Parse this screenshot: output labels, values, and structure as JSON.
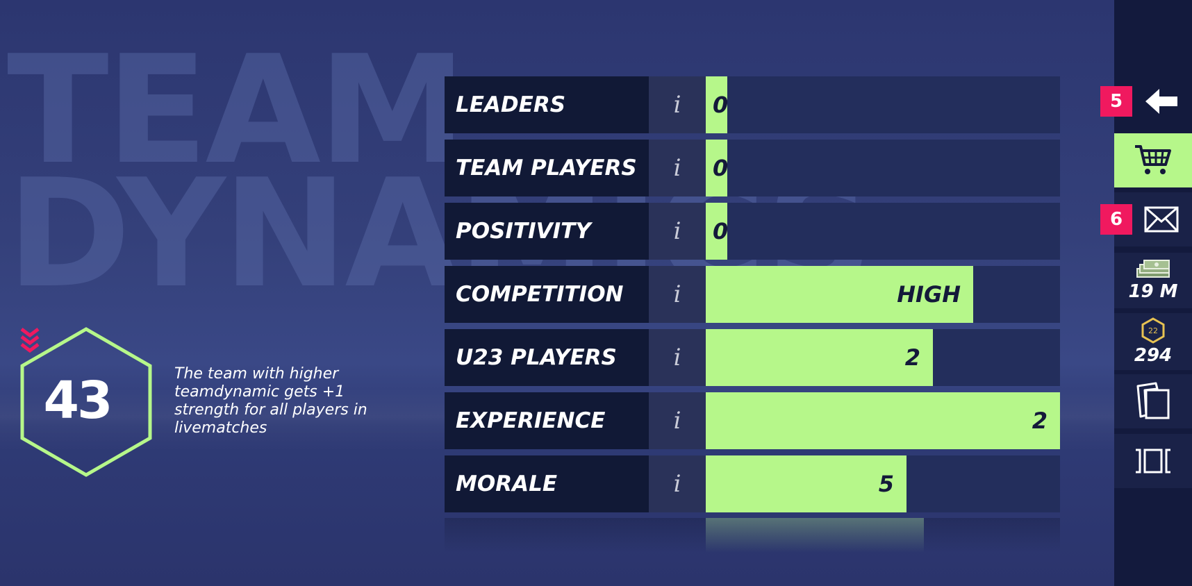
{
  "background_title": [
    "TEAM",
    "DYNAMICS"
  ],
  "stats": [
    {
      "label": "LEADERS",
      "info_icon": "i",
      "value": "0",
      "level": 0.06
    },
    {
      "label": "TEAM PLAYERS",
      "info_icon": "i",
      "value": "0",
      "level": 0.06
    },
    {
      "label": "POSITIVITY",
      "info_icon": "i",
      "value": "0",
      "level": 0.06
    },
    {
      "label": "COMPETITION",
      "info_icon": "i",
      "value": "HIGH",
      "level": 0.754
    },
    {
      "label": "U23 PLAYERS",
      "info_icon": "i",
      "value": "2",
      "level": 0.642
    },
    {
      "label": "EXPERIENCE",
      "info_icon": "i",
      "value": "2",
      "level": 1.0
    },
    {
      "label": "MORALE",
      "info_icon": "i",
      "value": "5",
      "level": 0.566
    }
  ],
  "team_dynamic": {
    "value": "43",
    "trend_icon": "double-chevron-down-icon",
    "description": "The team with higher teamdynamic gets +1 strength for all players in livematches"
  },
  "sidebar": {
    "back_badge": "5",
    "mail_badge": "6",
    "cash_value": "19 M",
    "coin_icon_label": "22",
    "coin_value": "294"
  },
  "colors": {
    "accent_green": "#b6f78a",
    "badge_pink": "#f0195f",
    "label_bg": "#111936",
    "track_bg": "#232e5c",
    "sidebar_bg": "#131a3d"
  }
}
